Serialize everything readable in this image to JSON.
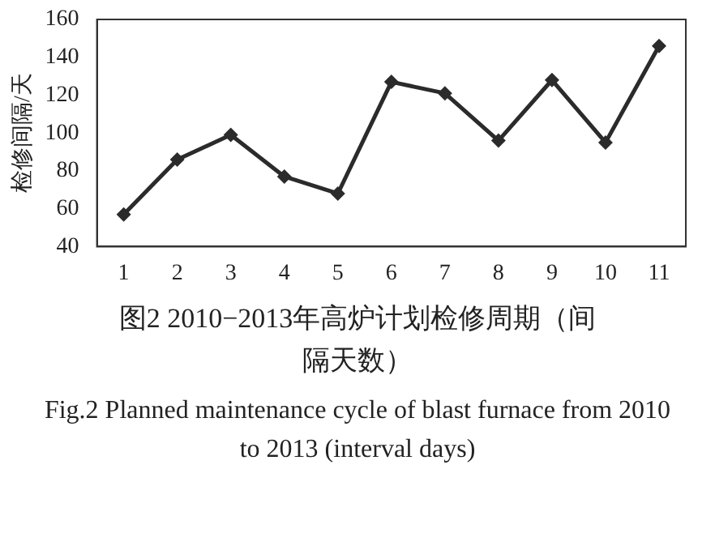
{
  "chart_data": {
    "type": "line",
    "title": "图2 2010−2013年高炉计划检修周期（间隔天数）",
    "subtitle": "Fig.2 Planned maintenance cycle of blast furnace from 2010 to 2013 (interval days)",
    "ylabel": "检修间隔/天",
    "categories": [
      "1",
      "2",
      "3",
      "4",
      "5",
      "6",
      "7",
      "8",
      "9",
      "10",
      "11"
    ],
    "series": [
      {
        "color": "#2b2b2b",
        "values": [
          57,
          86,
          99,
          77,
          68,
          127,
          121,
          96,
          128,
          95,
          146
        ]
      }
    ],
    "ylim": [
      40,
      160
    ],
    "yticks": [
      40,
      60,
      80,
      100,
      120,
      140,
      160
    ],
    "grid": false,
    "legend": false,
    "marker": "diamond",
    "line_style": "solid"
  }
}
